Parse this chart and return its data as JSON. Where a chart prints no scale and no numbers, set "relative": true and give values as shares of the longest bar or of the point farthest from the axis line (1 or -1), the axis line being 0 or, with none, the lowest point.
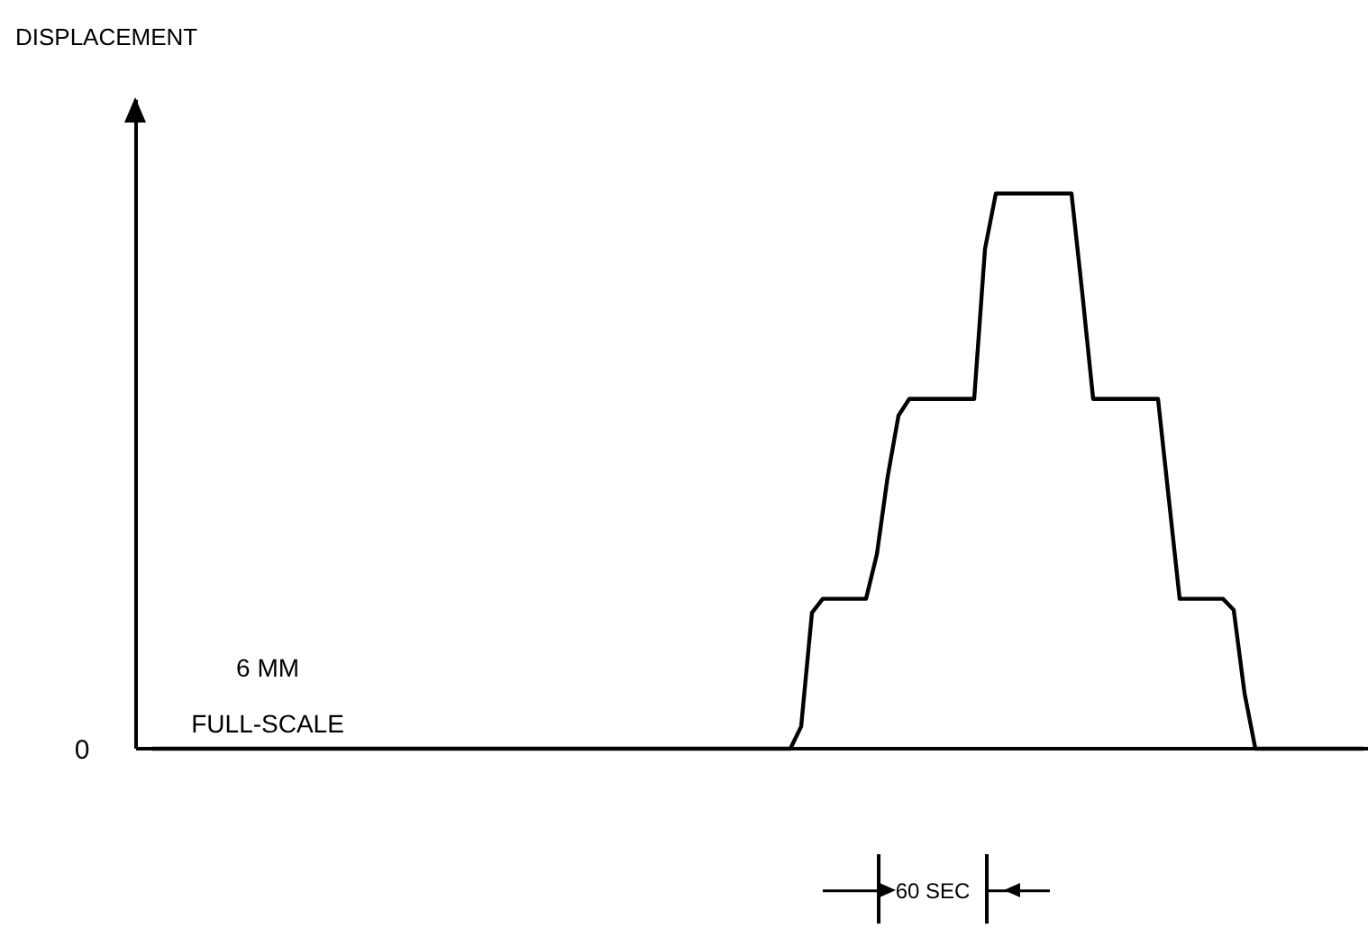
{
  "chart_data": {
    "type": "line",
    "relative": true,
    "categories": [
      null,
      null,
      null,
      null,
      null,
      null,
      null,
      null,
      null,
      null,
      null,
      null,
      null,
      null,
      null,
      null,
      null,
      null,
      null,
      null,
      null,
      null,
      null,
      null,
      null,
      null,
      null,
      null,
      null,
      null,
      null,
      null,
      null,
      null,
      null,
      null,
      null,
      null,
      null,
      null,
      null,
      null,
      null,
      null,
      null,
      null,
      null,
      null,
      null,
      null,
      null,
      null,
      null,
      null,
      null,
      null,
      null,
      null,
      null,
      null,
      null,
      null,
      null,
      null,
      null,
      null,
      null,
      null,
      null,
      null,
      null,
      null,
      null,
      null,
      null,
      null,
      null,
      null,
      null,
      null,
      null,
      null,
      null,
      null,
      null,
      null,
      null,
      null,
      null,
      null,
      null,
      null,
      null,
      null,
      null,
      null,
      null,
      null,
      null,
      null,
      null,
      null,
      null,
      null,
      null,
      null,
      null,
      null,
      null,
      null,
      null,
      null,
      null
    ],
    "series": [
      {
        "color": "#000000",
        "values": [
          0,
          0,
          0,
          0,
          0,
          0,
          0,
          0,
          0,
          0,
          0,
          0,
          0,
          0,
          0,
          0,
          0,
          0,
          0,
          0,
          0,
          0,
          0,
          0,
          0,
          0,
          0,
          0,
          0,
          0,
          0,
          0,
          0,
          0,
          0,
          0,
          0,
          0,
          0,
          0,
          0,
          0,
          0,
          0,
          0,
          0,
          0,
          0,
          0,
          0,
          0,
          0,
          0,
          0,
          0,
          0,
          0,
          0,
          0,
          0,
          0.04,
          0.245,
          0.27,
          0.27,
          0.27,
          0.27,
          0.27,
          0.35,
          0.49,
          0.6,
          0.63,
          0.63,
          0.63,
          0.63,
          0.63,
          0.63,
          0.63,
          0.9,
          1,
          1,
          1,
          1,
          1,
          1,
          1,
          1,
          0.82,
          0.63,
          0.63,
          0.63,
          0.63,
          0.63,
          0.63,
          0.63,
          0.45,
          0.27,
          0.27,
          0.27,
          0.27,
          0.27,
          0.25,
          0.1,
          0,
          0,
          0,
          0,
          0,
          0,
          0,
          0,
          0,
          0,
          0
        ]
      }
    ],
    "annotations": [
      "DISPLACEMENT",
      "0",
      "6 MM",
      "FULL-SCALE",
      "60 SEC"
    ],
    "line_style": "solid",
    "grid": false
  }
}
